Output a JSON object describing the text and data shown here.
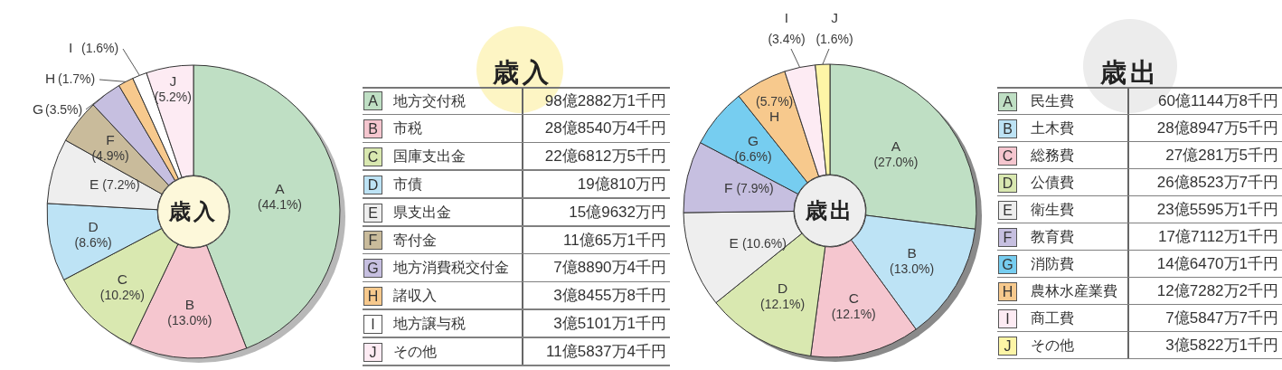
{
  "chart_data": [
    {
      "type": "donut",
      "title": "歳入",
      "categories": [
        "A",
        "B",
        "C",
        "D",
        "E",
        "F",
        "G",
        "H",
        "I",
        "J"
      ],
      "values": [
        44.1,
        13.0,
        10.2,
        8.6,
        7.2,
        4.9,
        3.5,
        1.7,
        1.6,
        5.2
      ],
      "value_labels": [
        "(44.1%)",
        "(13.0%)",
        "(10.2%)",
        "(8.6%)",
        "(7.2%)",
        "(4.9%)",
        "(3.5%)",
        "(1.7%)",
        "(1.6%)",
        "(5.2%)"
      ],
      "colors": [
        "#bfdfc4",
        "#f5c6cf",
        "#d9e8b0",
        "#bde3f5",
        "#eeeeee",
        "#c9bb9b",
        "#c6bfe0",
        "#f7c98d",
        "#ffffff",
        "#fdebf3"
      ]
    },
    {
      "type": "other",
      "title": "歳入",
      "categories": [
        "A",
        "B",
        "C",
        "D",
        "E",
        "F",
        "G",
        "H",
        "I",
        "J"
      ],
      "colors": [
        "#bfdfc4",
        "#f5c6cf",
        "#d9e8b0",
        "#bde3f5",
        "#eeeeee",
        "#c9bb9b",
        "#c6bfe0",
        "#f7c98d",
        "#ffffff",
        "#fdebf3"
      ],
      "annotations": [
        "地方交付税",
        "98億2882万1千円",
        "市税",
        "28億8540万4千円",
        "国庫支出金",
        "22億6812万5千円",
        "市債",
        "19億810万円",
        "県支出金",
        "15億9632万円",
        "寄付金",
        "11億65万1千円",
        "地方消費税交付金",
        "7億8890万4千円",
        "諸収入",
        "3億8455万8千円",
        "地方譲与税",
        "3億5101万1千円",
        "その他",
        "11億5837万4千円"
      ]
    },
    {
      "type": "donut",
      "title": "歳出",
      "categories": [
        "A",
        "B",
        "C",
        "D",
        "E",
        "F",
        "G",
        "H",
        "I",
        "J"
      ],
      "values": [
        27.0,
        13.0,
        12.1,
        12.1,
        10.6,
        7.9,
        6.6,
        5.7,
        3.4,
        1.6
      ],
      "value_labels": [
        "(27.0%)",
        "(13.0%)",
        "(12.1%)",
        "(12.1%)",
        "(10.6%)",
        "(7.9%)",
        "(6.6%)",
        "(5.7%)",
        "(3.4%)",
        "(1.6%)"
      ],
      "colors": [
        "#bfdfc4",
        "#bde3f5",
        "#f5c6cf",
        "#d9e8b0",
        "#eeeeee",
        "#c6bfe0",
        "#76cdf0",
        "#f7c98d",
        "#fdebf3",
        "#fdf5a6"
      ]
    },
    {
      "type": "other",
      "title": "歳出",
      "categories": [
        "A",
        "B",
        "C",
        "D",
        "E",
        "F",
        "G",
        "H",
        "I",
        "J"
      ],
      "colors": [
        "#bfdfc4",
        "#bde3f5",
        "#f5c6cf",
        "#d9e8b0",
        "#eeeeee",
        "#c6bfe0",
        "#76cdf0",
        "#f7c98d",
        "#fdebf3",
        "#fdf5a6"
      ],
      "annotations": [
        "民生費",
        "60億1144万8千円",
        "土木費",
        "28億8947万5千円",
        "総務費",
        "27億281万5千円",
        "公債費",
        "26億8523万7千円",
        "衛生費",
        "23億5595万1千円",
        "教育費",
        "17億7112万1千円",
        "消防費",
        "14億6470万1千円",
        "農林水産業費",
        "12億7282万2千円",
        "商工費",
        "7億5847万7千円",
        "その他",
        "3億5822万1千円"
      ]
    }
  ]
}
